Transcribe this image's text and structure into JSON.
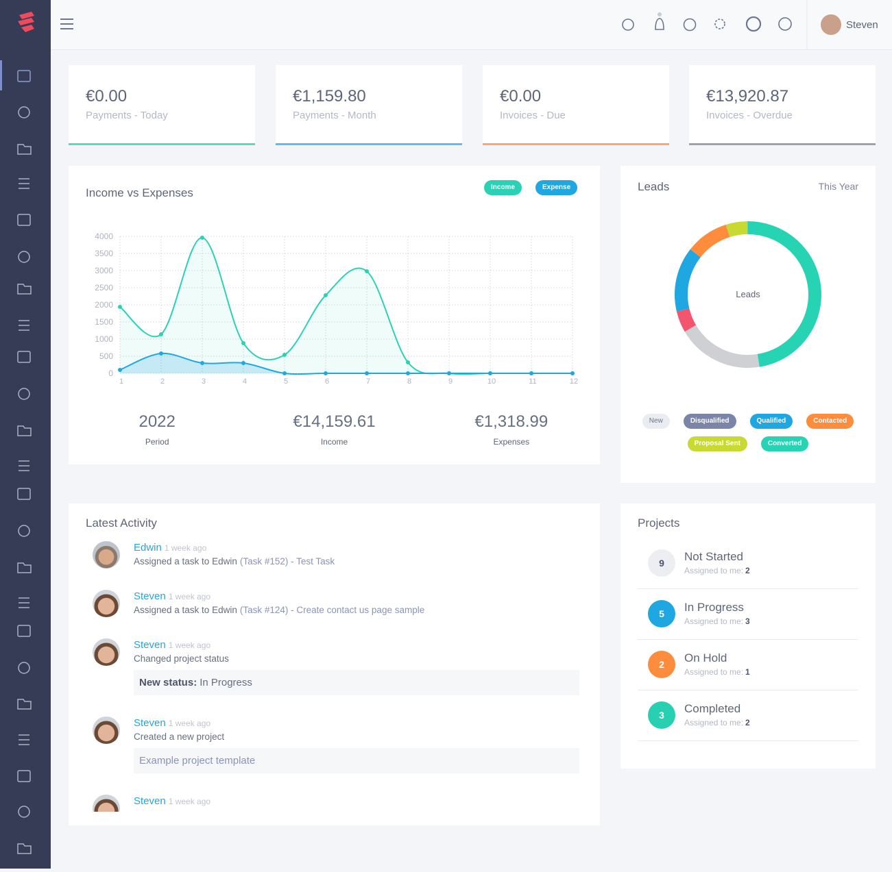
{
  "header": {
    "user": "Steven"
  },
  "stats": [
    {
      "value": "€0.00",
      "label": "Payments - Today",
      "color": "#5fd6c1"
    },
    {
      "value": "€1,159.80",
      "label": "Payments - Month",
      "color": "#62bbe9"
    },
    {
      "value": "€0.00",
      "label": "Invoices - Due",
      "color": "#f6a77b"
    },
    {
      "value": "€13,920.87",
      "label": "Invoices - Overdue",
      "color": "#9ba2b5"
    }
  ],
  "chart_data": [
    {
      "type": "line",
      "title": "Income vs Expenses",
      "x": [
        1,
        2,
        3,
        4,
        5,
        6,
        7,
        8,
        9,
        10,
        11,
        12
      ],
      "xlim": [
        1,
        12
      ],
      "xticks": [
        1,
        2,
        3,
        4,
        5,
        6,
        7,
        8,
        9,
        10,
        11,
        12
      ],
      "ylim": [
        0,
        4000
      ],
      "yticks": [
        0,
        500,
        1000,
        1500,
        2000,
        2500,
        3000,
        3500,
        4000
      ],
      "grid": true,
      "series": [
        {
          "name": "Income",
          "color": "#2bd1b5",
          "values": [
            1940,
            1140,
            3960,
            880,
            540,
            2280,
            2980,
            320,
            0,
            0,
            0,
            0
          ]
        },
        {
          "name": "Expense",
          "color": "#1ea7e0",
          "values": [
            100,
            580,
            300,
            300,
            0,
            0,
            0,
            0,
            0,
            0,
            0,
            0
          ]
        }
      ]
    },
    {
      "type": "pie",
      "title": "Leads",
      "subtitle": "This Year",
      "center_label": "Leads",
      "categories": [
        "New",
        "Disqualified",
        "Qualified",
        "Contacted",
        "Proposal Sent",
        "Converted"
      ],
      "values": [
        4,
        1,
        3,
        2,
        1,
        10
      ],
      "colors": [
        "#cfd0d3",
        "#f2556d",
        "#1ea7e0",
        "#fd8c3c",
        "#c8d932",
        "#26d3b3"
      ],
      "legend_colors": [
        "#e9ecf1",
        "#7b85a8",
        "#1ea7e0",
        "#fd8c3c",
        "#c8d932",
        "#26d3b3"
      ]
    }
  ],
  "income_summary": [
    {
      "value": "2022",
      "label": "Period"
    },
    {
      "value": "€14,159.61",
      "label": "Income"
    },
    {
      "value": "€1,318.99",
      "label": "Expenses"
    }
  ],
  "activity": {
    "title": "Latest Activity",
    "items": [
      {
        "name": "Edwin",
        "time": "1 week ago",
        "text": "Assigned a task to Edwin",
        "link": "(Task #152) - Test Task"
      },
      {
        "name": "Steven",
        "time": "1 week ago",
        "text": "Assigned a task to Edwin",
        "link": "(Task #124) - Create contact us page sample"
      },
      {
        "name": "Steven",
        "time": "1 week ago",
        "text": "Changed project status",
        "note_label": "New status:",
        "note": "In Progress"
      },
      {
        "name": "Steven",
        "time": "1 week ago",
        "text": "Created a new project",
        "note": "Example project template"
      },
      {
        "name": "Steven",
        "time": "1 week ago"
      }
    ]
  },
  "projects": {
    "title": "Projects",
    "assigned_label": "Assigned to me:",
    "items": [
      {
        "count": 9,
        "name": "Not Started",
        "assigned": 2,
        "color": "#eceef2"
      },
      {
        "count": 5,
        "name": "In Progress",
        "assigned": 3,
        "color": "#1ea7e0"
      },
      {
        "count": 2,
        "name": "On Hold",
        "assigned": 1,
        "color": "#fd8c3c"
      },
      {
        "count": 3,
        "name": "Completed",
        "assigned": 2,
        "color": "#26d0b0"
      }
    ]
  }
}
